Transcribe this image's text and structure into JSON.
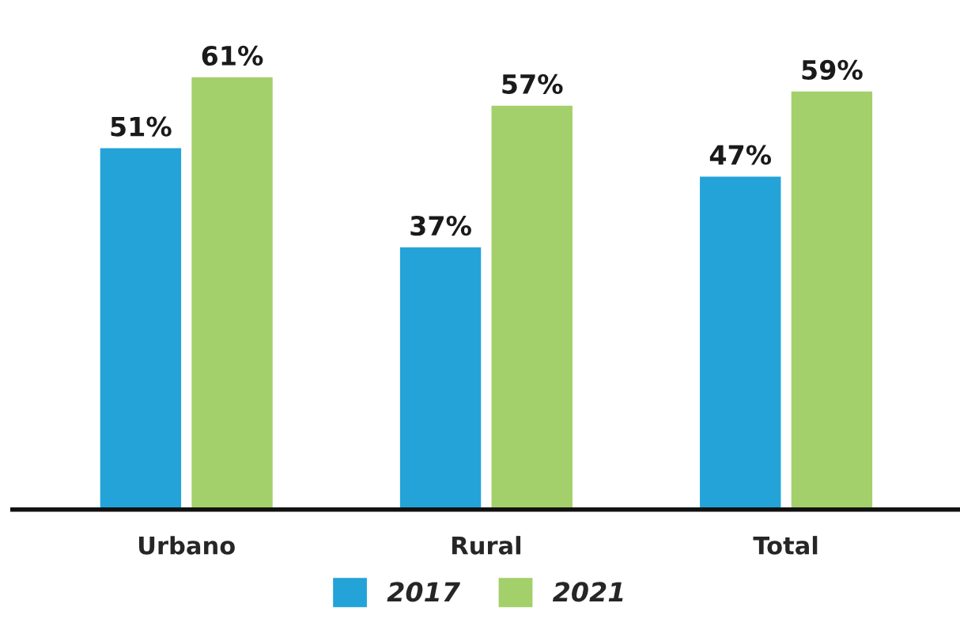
{
  "chart_data": {
    "type": "bar",
    "categories": [
      "Urbano",
      "Rural",
      "Total"
    ],
    "series": [
      {
        "name": "2017",
        "color": "#24a3d8",
        "values": [
          51,
          37,
          47
        ],
        "value_labels": [
          "51%",
          "37%",
          "47%"
        ]
      },
      {
        "name": "2021",
        "color": "#a3d06a",
        "values": [
          61,
          57,
          59
        ],
        "value_labels": [
          "61%",
          "57%",
          "59%"
        ]
      }
    ],
    "legend": "bottom",
    "grid": false
  }
}
